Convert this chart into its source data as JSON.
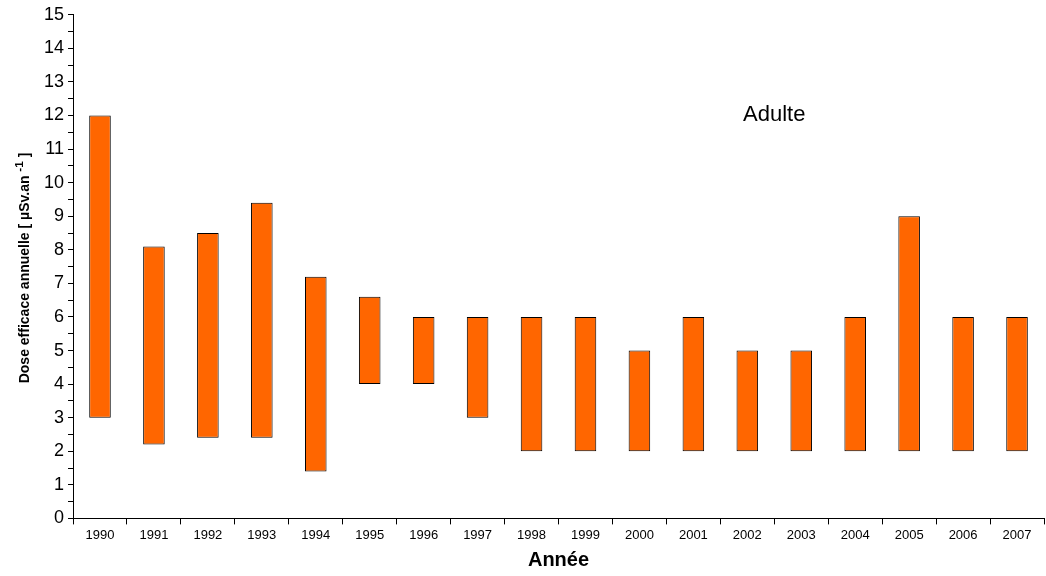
{
  "chart_data": {
    "type": "bar",
    "xlabel": "Année",
    "ylabel": "Dose efficace annuelle [ µSv.an $^{-1}$ ]",
    "annotations": [
      "Adulte"
    ],
    "categories": [
      "1990",
      "1991",
      "1992",
      "1993",
      "1994",
      "1995",
      "1996",
      "1997",
      "1998",
      "1999",
      "2000",
      "2001",
      "2002",
      "2003",
      "2004",
      "2005",
      "2006",
      "2007"
    ],
    "base": [
      3,
      2.2,
      2.4,
      2.4,
      1.4,
      4,
      4,
      3,
      2,
      2,
      2,
      2,
      2,
      2,
      2,
      2,
      2,
      2
    ],
    "values": [
      9,
      5.9,
      6.1,
      7.0,
      5.8,
      2.6,
      2,
      3,
      4,
      4,
      3,
      4,
      3,
      3,
      4,
      7,
      4,
      4
    ],
    "color": "#ff6600",
    "ylim": [
      0,
      15
    ],
    "yticks": [
      0,
      {
        "value": 0.5,
        "label": null
      },
      1,
      {
        "value": 1.5,
        "label": null
      },
      2,
      {
        "value": 2.5,
        "label": null
      },
      3,
      {
        "value": 3.5,
        "label": null
      },
      4,
      {
        "value": 4.5,
        "label": null
      },
      5,
      {
        "value": 5.5,
        "label": null
      },
      6,
      {
        "value": 6.5,
        "label": null
      },
      7,
      {
        "value": 7.5,
        "label": null
      },
      8,
      {
        "value": 8.5,
        "label": null
      },
      9,
      {
        "value": 9.5,
        "label": null
      },
      10,
      {
        "value": 10.5,
        "label": null
      },
      11,
      {
        "value": 11.5,
        "label": null
      },
      12,
      {
        "value": 12.5,
        "label": null
      },
      13,
      {
        "value": 13.5,
        "label": null
      },
      14,
      {
        "value": 14.5,
        "label": null
      },
      15
    ],
    "grid": false,
    "legend": false
  }
}
